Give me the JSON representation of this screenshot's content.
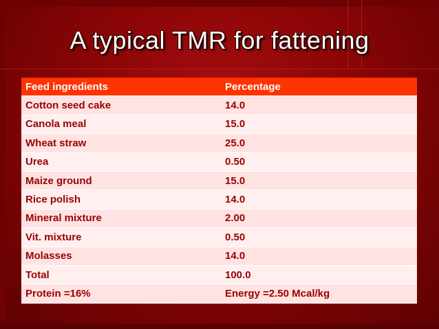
{
  "slide": {
    "title": "A typical TMR for fattening"
  },
  "table": {
    "headers": [
      "Feed ingredients",
      "Percentage"
    ],
    "rows": [
      [
        "Cotton seed cake",
        "14.0"
      ],
      [
        "Canola meal",
        "15.0"
      ],
      [
        "Wheat straw",
        "25.0"
      ],
      [
        "Urea",
        "0.50"
      ],
      [
        "Maize ground",
        "15.0"
      ],
      [
        "Rice polish",
        "14.0"
      ],
      [
        "Mineral mixture",
        "2.00"
      ],
      [
        "Vit. mixture",
        "0.50"
      ],
      [
        "Molasses",
        "14.0"
      ],
      [
        "Total",
        "100.0"
      ],
      [
        "Protein =16%",
        "Energy =2.50 Mcal/kg"
      ]
    ]
  },
  "colors": {
    "background": "#8a0506",
    "header_row": "#ff3300",
    "row_band_a": "#ffe2e2",
    "row_band_b": "#ffefef",
    "cell_text": "#990000"
  }
}
